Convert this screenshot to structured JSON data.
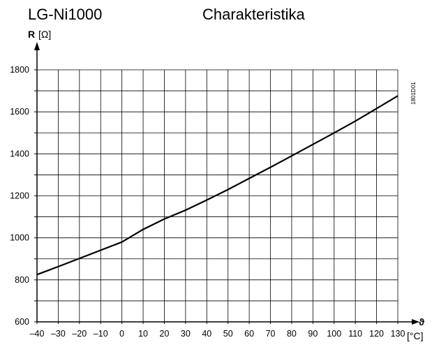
{
  "chart_data": {
    "type": "line",
    "title": "LG-Ni1000",
    "subtitle": "Charakteristika",
    "ylabel_symbol": "R",
    "ylabel_unit": "[Ω]",
    "xlabel_symbol": "ϑ",
    "xlabel_unit": "[°C]",
    "figure_code": "1801D01",
    "xlim": [
      -40,
      130
    ],
    "ylim": [
      600,
      1800
    ],
    "x_ticks": [
      "–40",
      "–30",
      "–20",
      "–10",
      "0",
      "10",
      "20",
      "30",
      "40",
      "50",
      "60",
      "70",
      "80",
      "90",
      "100",
      "110",
      "120",
      "130"
    ],
    "y_ticks": [
      "600",
      "800",
      "1000",
      "1200",
      "1400",
      "1600",
      "1800"
    ],
    "grid": true,
    "series": [
      {
        "x": [
          -40,
          -30,
          -20,
          -10,
          0,
          10,
          20,
          30,
          40,
          50,
          60,
          70,
          80,
          90,
          100,
          110,
          120,
          130
        ],
        "y": [
          825,
          863,
          902,
          941,
          980,
          1040,
          1090,
          1132,
          1180,
          1230,
          1283,
          1336,
          1390,
          1445,
          1500,
          1556,
          1616,
          1676
        ]
      }
    ]
  }
}
